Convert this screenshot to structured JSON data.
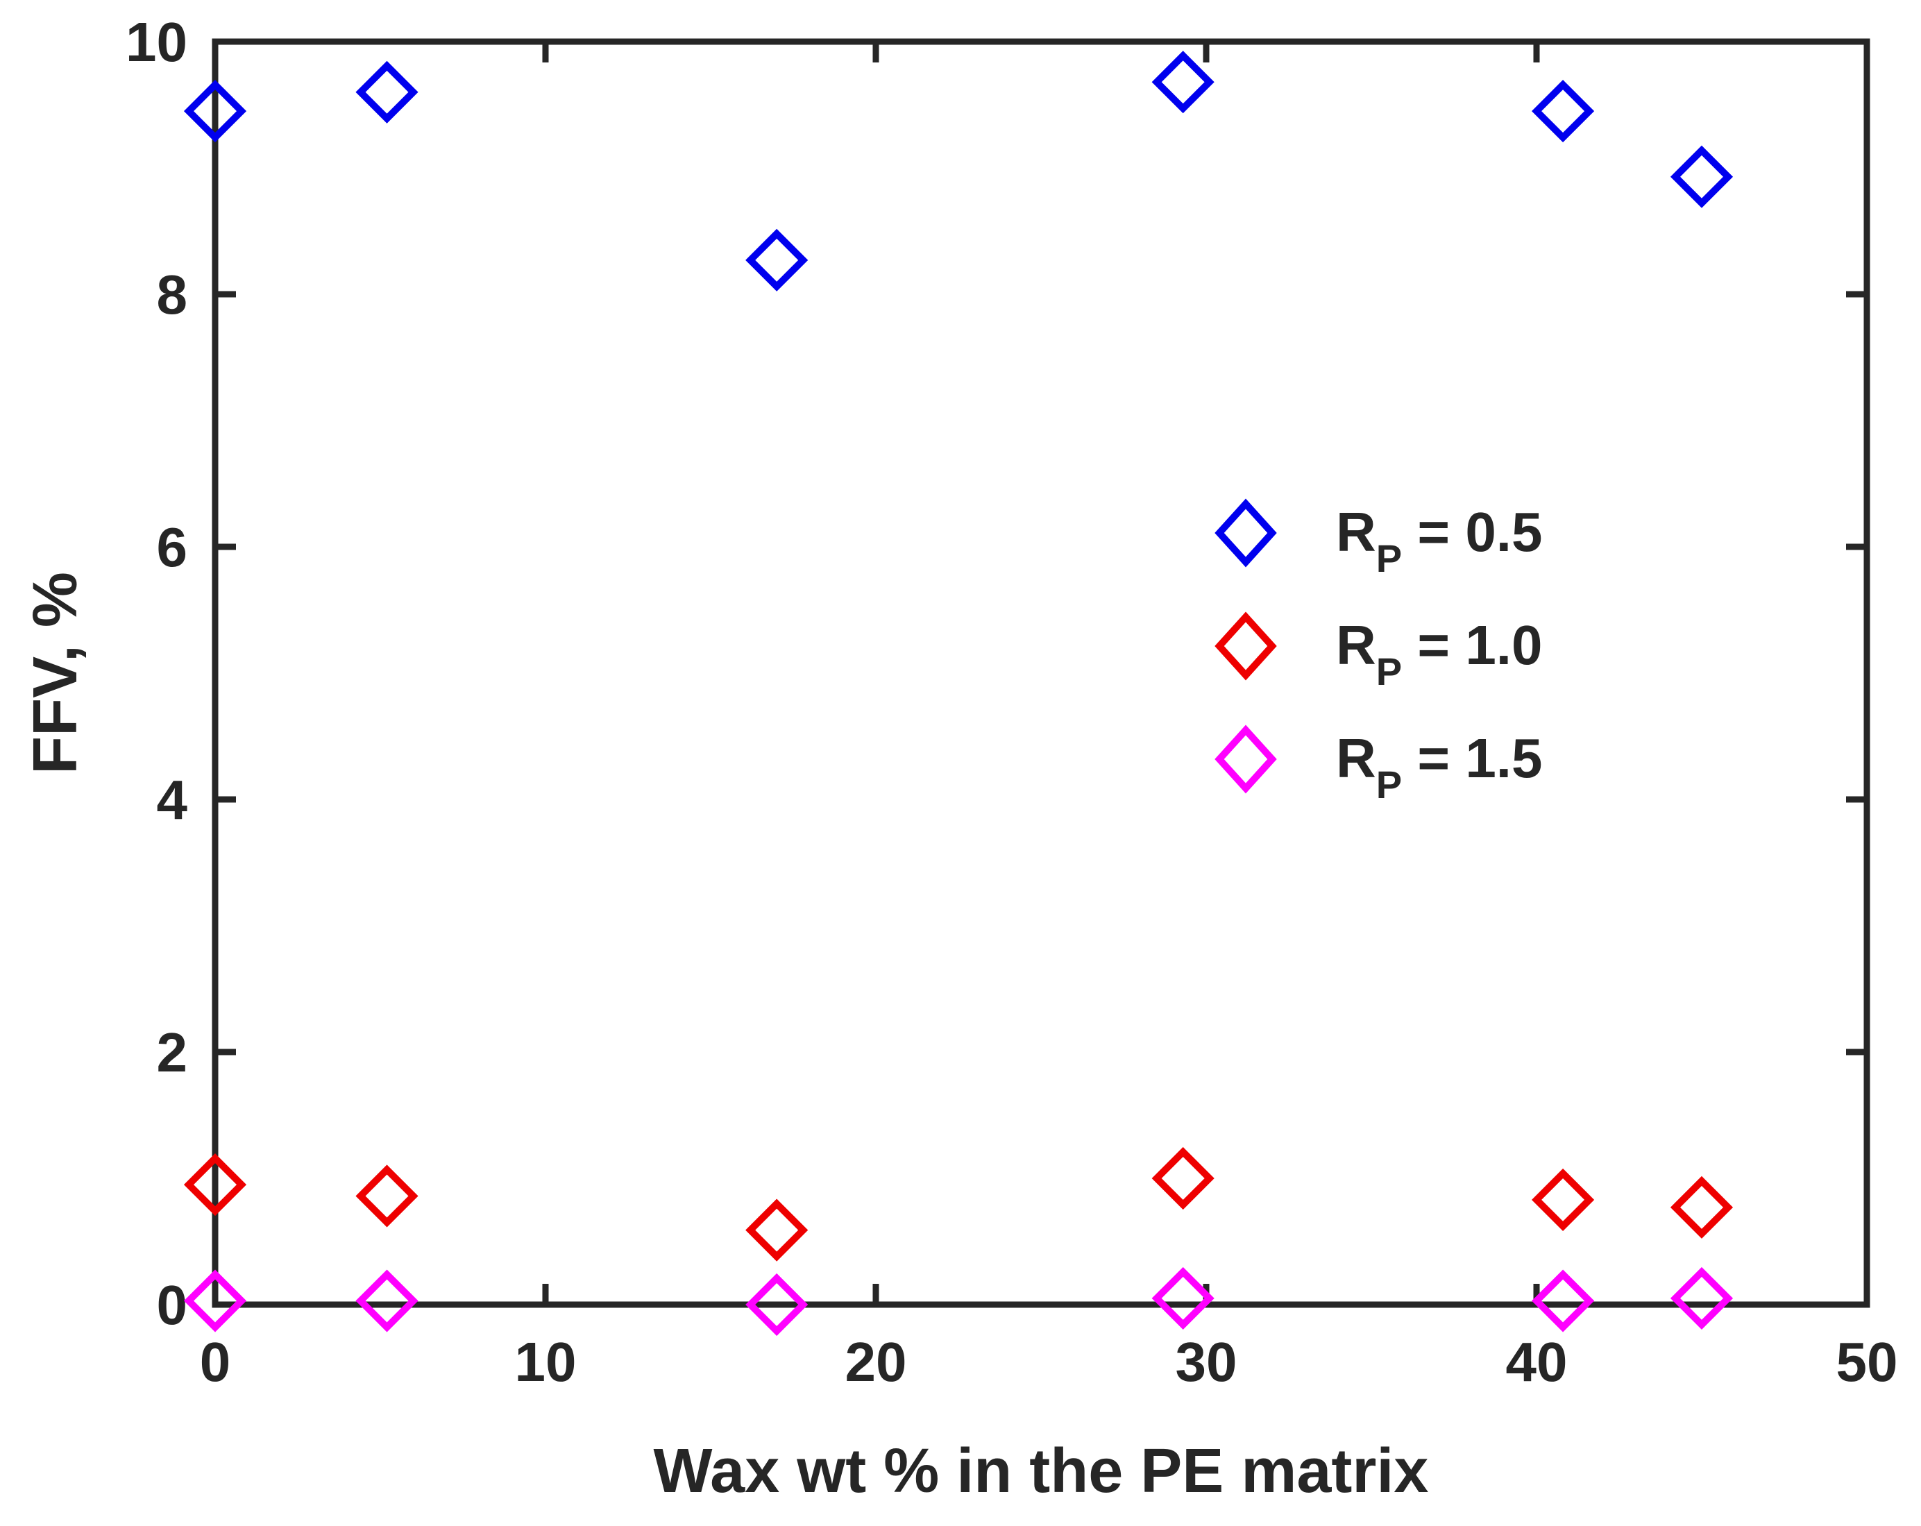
{
  "chart_data": {
    "type": "scatter",
    "xlabel": "Wax wt % in the PE matrix",
    "ylabel": "FFV, %",
    "xlim": [
      0,
      50
    ],
    "ylim": [
      0,
      10
    ],
    "xticks": [
      0,
      10,
      20,
      30,
      40,
      50
    ],
    "yticks": [
      0,
      2,
      4,
      6,
      8,
      10
    ],
    "marker": "diamond",
    "legend_position": "center-right",
    "series": [
      {
        "name": "R_P = 0.5",
        "label_main": "R",
        "label_sub": "P",
        "label_rest": " = 0.5",
        "color": "#0000ee",
        "x": [
          0,
          5.2,
          17.0,
          29.3,
          40.8,
          45.0
        ],
        "y": [
          9.45,
          9.6,
          8.27,
          9.68,
          9.45,
          8.93
        ]
      },
      {
        "name": "R_P = 1.0",
        "label_main": "R",
        "label_sub": "P",
        "label_rest": " = 1.0",
        "color": "#ee0000",
        "x": [
          0,
          5.2,
          17.0,
          29.3,
          40.8,
          45.0
        ],
        "y": [
          0.95,
          0.86,
          0.59,
          1.0,
          0.83,
          0.77
        ]
      },
      {
        "name": "R_P = 1.5",
        "label_main": "R",
        "label_sub": "P",
        "label_rest": " = 1.5",
        "color": "#ff00ff",
        "x": [
          0,
          5.2,
          17.0,
          29.3,
          40.8,
          45.0
        ],
        "y": [
          0.03,
          0.03,
          0.0,
          0.05,
          0.03,
          0.05
        ]
      }
    ]
  }
}
